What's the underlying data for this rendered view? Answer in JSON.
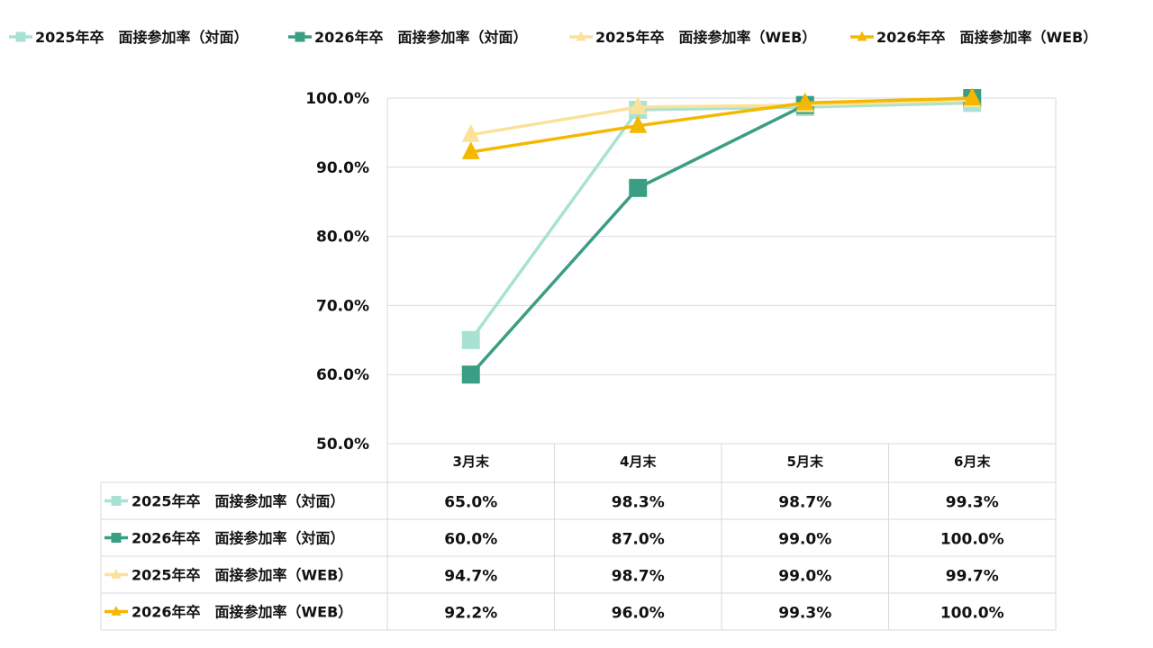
{
  "chart_data": {
    "type": "line",
    "categories": [
      "3月末",
      "4月末",
      "5月末",
      "6月末"
    ],
    "ylim": [
      50,
      100
    ],
    "yticks": [
      "50.0%",
      "60.0%",
      "70.0%",
      "80.0%",
      "90.0%",
      "100.0%"
    ],
    "legend_position": "top",
    "grid": true,
    "data_table": true,
    "series": [
      {
        "name": "2025年卒　面接参加率（対面）",
        "color": "#a8e2d2",
        "marker": "square",
        "values": [
          65.0,
          98.3,
          98.7,
          99.3
        ],
        "labels": [
          "65.0%",
          "98.3%",
          "98.7%",
          "99.3%"
        ]
      },
      {
        "name": "2026年卒　面接参加率（対面）",
        "color": "#3a9e84",
        "marker": "square",
        "values": [
          60.0,
          87.0,
          99.0,
          100.0
        ],
        "labels": [
          "60.0%",
          "87.0%",
          "99.0%",
          "100.0%"
        ]
      },
      {
        "name": "2025年卒　面接参加率（WEB）",
        "color": "#fbe29a",
        "marker": "triangle",
        "values": [
          94.7,
          98.7,
          99.0,
          99.7
        ],
        "labels": [
          "94.7%",
          "98.7%",
          "99.0%",
          "99.7%"
        ]
      },
      {
        "name": "2026年卒　面接参加率（WEB）",
        "color": "#f5b800",
        "marker": "triangle",
        "values": [
          92.2,
          96.0,
          99.3,
          100.0
        ],
        "labels": [
          "92.2%",
          "96.0%",
          "99.3%",
          "100.0%"
        ]
      }
    ]
  }
}
